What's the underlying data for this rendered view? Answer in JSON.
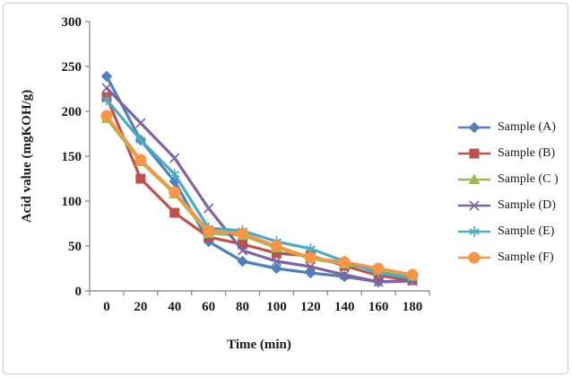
{
  "figure": {
    "background": "#ffffff",
    "frame_border_color": "#c6c6c6",
    "axis_color": "#7f7f7f",
    "label_color": "#1a1a1a"
  },
  "chart_data": {
    "type": "line",
    "title": "",
    "xlabel": "Time (min)",
    "ylabel": "Acid value (mgKOH/g)",
    "x": [
      0,
      20,
      40,
      60,
      80,
      100,
      120,
      140,
      160,
      180
    ],
    "ylim": [
      0,
      300
    ],
    "ytick_step": 50,
    "grid": false,
    "legend_position": "right",
    "series": [
      {
        "name": "Sample (A)",
        "color": "#4F81BD",
        "marker": "diamond",
        "values": [
          239,
          168,
          122,
          55,
          33,
          25,
          20,
          16,
          10,
          12
        ]
      },
      {
        "name": "Sample (B)",
        "color": "#C0504D",
        "marker": "square",
        "values": [
          216,
          125,
          87,
          60,
          52,
          42,
          39,
          28,
          17,
          12
        ]
      },
      {
        "name": "Sample (C )",
        "color": "#9BBB59",
        "marker": "triangle",
        "values": [
          192,
          144,
          108,
          64,
          62,
          48,
          36,
          30,
          23,
          16
        ]
      },
      {
        "name": "Sample (D)",
        "color": "#8064A2",
        "marker": "x",
        "values": [
          226,
          187,
          148,
          92,
          45,
          33,
          27,
          18,
          10,
          11
        ]
      },
      {
        "name": "Sample (E)",
        "color": "#4BACC6",
        "marker": "star",
        "values": [
          213,
          168,
          130,
          70,
          67,
          55,
          47,
          33,
          20,
          14
        ]
      },
      {
        "name": "Sample (F)",
        "color": "#F79646",
        "marker": "circle",
        "values": [
          195,
          146,
          110,
          67,
          64,
          50,
          37,
          32,
          25,
          18
        ]
      }
    ]
  }
}
